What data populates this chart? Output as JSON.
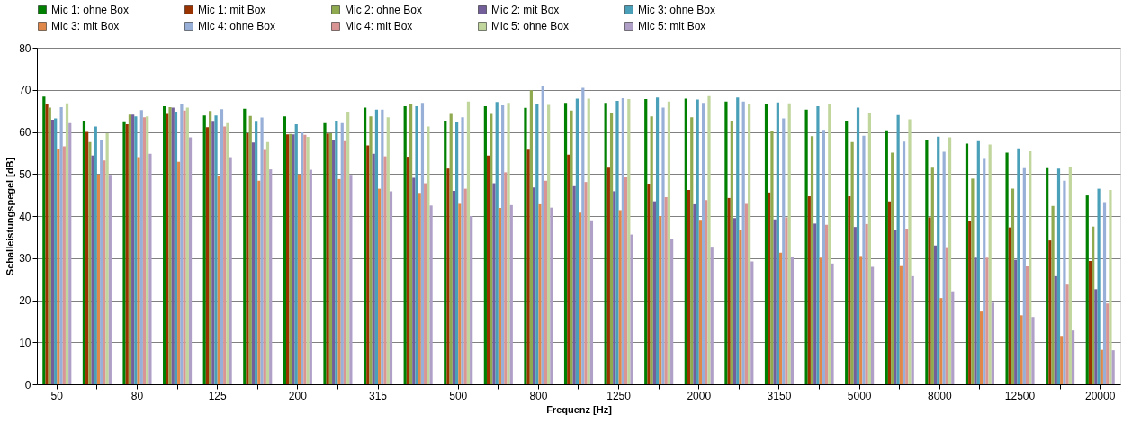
{
  "chart_data": {
    "type": "bar",
    "xlabel": "Frequenz  [Hz]",
    "ylabel": "Schalleistungspegel [dB]",
    "categories": [
      "50",
      null,
      "80",
      null,
      "125",
      null,
      "200",
      null,
      "315",
      null,
      "500",
      null,
      "800",
      null,
      "1250",
      null,
      "2000",
      null,
      "3150",
      null,
      "5000",
      null,
      "8000",
      null,
      "12500",
      null,
      "20000"
    ],
    "ylim": [
      0,
      80
    ],
    "yticks": [
      0,
      10,
      20,
      30,
      40,
      50,
      60,
      70,
      80
    ],
    "grid": "y",
    "legend": "top",
    "series": [
      {
        "name": "Mic 1: ohne Box",
        "color": "#008000",
        "values": [
          68.4,
          62.7,
          62.5,
          66.1,
          63.9,
          65.5,
          63.7,
          62.1,
          65.8,
          66.1,
          62.7,
          66.1,
          65.7,
          66.9,
          66.9,
          67.8,
          67.9,
          67.2,
          66.7,
          65.3,
          62.7,
          60.4,
          58.0,
          57.2,
          55.1,
          51.4,
          44.9
        ]
      },
      {
        "name": "Mic 1: mit Box",
        "color": "#993300",
        "values": [
          66.6,
          60.0,
          61.8,
          64.3,
          61.1,
          59.7,
          59.4,
          59.6,
          56.8,
          54.1,
          51.3,
          54.4,
          55.8,
          54.6,
          51.5,
          47.7,
          46.2,
          44.3,
          45.6,
          44.7,
          44.7,
          43.5,
          39.7,
          38.9,
          37.3,
          34.2,
          29.3
        ]
      },
      {
        "name": "Mic 2: ohne Box",
        "color": "#8faa4f",
        "values": [
          65.8,
          57.6,
          64.1,
          65.9,
          65.0,
          63.8,
          59.5,
          59.7,
          63.7,
          66.7,
          64.3,
          64.3,
          69.9,
          65.1,
          64.6,
          63.7,
          63.5,
          62.7,
          60.3,
          59.0,
          57.6,
          55.1,
          51.5,
          48.9,
          46.5,
          42.4,
          37.5
        ]
      },
      {
        "name": "Mic 2: mit Box",
        "color": "#73609a",
        "values": [
          62.9,
          54.4,
          64.1,
          65.8,
          62.6,
          57.5,
          59.4,
          58.1,
          54.8,
          49.1,
          46.0,
          47.8,
          46.8,
          47.1,
          45.9,
          43.5,
          42.8,
          39.5,
          39.2,
          38.2,
          37.4,
          36.6,
          33.0,
          30.1,
          29.6,
          25.7,
          22.6
        ]
      },
      {
        "name": "Mic 3: ohne Box",
        "color": "#4aa0b8",
        "values": [
          63.2,
          61.3,
          63.7,
          64.8,
          63.9,
          62.6,
          61.8,
          62.7,
          65.3,
          66.1,
          62.4,
          67.1,
          66.7,
          67.9,
          67.4,
          68.2,
          67.7,
          68.2,
          67.0,
          66.1,
          65.8,
          64.0,
          58.9,
          57.8,
          56.1,
          51.3,
          46.5
        ]
      },
      {
        "name": "Mic 3: mit Box",
        "color": "#e0884a",
        "values": [
          55.9,
          49.9,
          54.0,
          52.9,
          49.5,
          48.4,
          49.9,
          48.8,
          46.5,
          45.5,
          42.9,
          41.9,
          42.8,
          40.8,
          41.4,
          40.0,
          39.1,
          36.6,
          31.3,
          30.1,
          30.5,
          28.3,
          20.5,
          17.3,
          16.4,
          11.5,
          8.2
        ]
      },
      {
        "name": "Mic 4: ohne Box",
        "color": "#98b0d8",
        "values": [
          65.9,
          58.2,
          65.2,
          66.7,
          65.4,
          63.4,
          59.9,
          62.1,
          65.3,
          66.9,
          63.5,
          66.3,
          70.9,
          70.5,
          68.0,
          65.8,
          66.9,
          67.2,
          63.2,
          60.5,
          59.1,
          57.7,
          55.3,
          53.6,
          51.4,
          48.4,
          43.3
        ]
      },
      {
        "name": "Mic 4: mit Box",
        "color": "#d99494",
        "values": [
          56.6,
          53.2,
          63.5,
          65.1,
          61.3,
          55.7,
          59.3,
          57.8,
          54.2,
          47.8,
          46.5,
          50.4,
          48.4,
          48.1,
          49.2,
          44.5,
          43.8,
          42.9,
          39.7,
          37.9,
          38.1,
          37.0,
          32.6,
          30.1,
          28.2,
          23.7,
          19.2
        ]
      },
      {
        "name": "Mic 5: ohne Box",
        "color": "#c0d69c",
        "values": [
          66.8,
          59.7,
          63.7,
          65.8,
          62.1,
          57.6,
          58.8,
          64.8,
          63.5,
          61.3,
          67.2,
          66.9,
          66.4,
          67.9,
          67.8,
          67.2,
          68.5,
          66.6,
          66.8,
          66.6,
          64.4,
          63.0,
          58.7,
          57.0,
          55.4,
          51.7,
          46.2
        ]
      },
      {
        "name": "Mic 5: mit Box",
        "color": "#b0a0c8",
        "values": [
          62.1,
          49.8,
          54.8,
          58.7,
          54.0,
          51.1,
          51.0,
          49.8,
          45.9,
          42.5,
          40.0,
          42.6,
          42.0,
          39.0,
          35.6,
          34.5,
          32.7,
          29.2,
          30.2,
          28.7,
          27.9,
          25.7,
          22.1,
          19.4,
          16.0,
          12.8,
          8.1
        ]
      }
    ]
  }
}
